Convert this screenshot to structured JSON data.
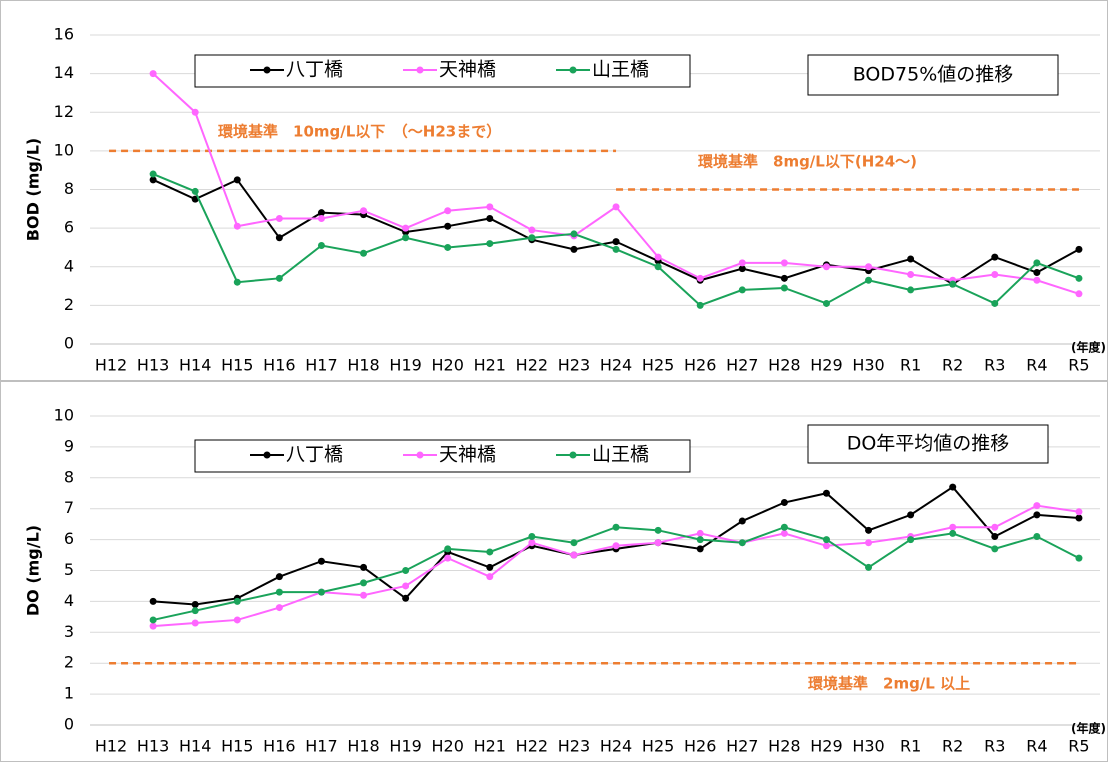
{
  "chart_data": [
    {
      "type": "line",
      "title": "BOD75%値の推移",
      "y_label": "BOD (mg/L)",
      "x_unit": "(年度)",
      "categories": [
        "H12",
        "H13",
        "H14",
        "H15",
        "H16",
        "H17",
        "H18",
        "H19",
        "H20",
        "H21",
        "H22",
        "H23",
        "H24",
        "H25",
        "H26",
        "H27",
        "H28",
        "H29",
        "H30",
        "R1",
        "R2",
        "R3",
        "R4",
        "R5"
      ],
      "ylim": [
        0,
        16
      ],
      "yticks": [
        0,
        2,
        4,
        6,
        8,
        10,
        12,
        14,
        16
      ],
      "grid": true,
      "series": [
        {
          "name": "八丁橋",
          "color": "#000000",
          "values": [
            null,
            8.5,
            7.5,
            8.5,
            5.5,
            6.8,
            6.7,
            5.8,
            6.1,
            6.5,
            5.4,
            4.9,
            5.3,
            4.3,
            3.3,
            3.9,
            3.4,
            4.1,
            3.8,
            4.4,
            3.1,
            4.5,
            3.7,
            4.9
          ]
        },
        {
          "name": "天神橋",
          "color": "#ff66ff",
          "values": [
            null,
            14,
            12,
            6.1,
            6.5,
            6.5,
            6.9,
            6.0,
            6.9,
            7.1,
            5.9,
            5.6,
            7.1,
            4.5,
            3.4,
            4.2,
            4.2,
            4.0,
            4.0,
            3.6,
            3.3,
            3.6,
            3.3,
            2.6
          ]
        },
        {
          "name": "山王橋",
          "color": "#1aa35a",
          "values": [
            null,
            8.8,
            7.9,
            3.2,
            3.4,
            5.1,
            4.7,
            5.5,
            5.0,
            5.2,
            5.5,
            5.7,
            4.9,
            4.0,
            2.0,
            2.8,
            2.9,
            2.1,
            3.3,
            2.8,
            3.1,
            2.1,
            4.2,
            3.4
          ]
        }
      ],
      "reference_lines": [
        {
          "value": 10,
          "from": "H12",
          "to": "H24",
          "label": "環境基準　10mg/L以下　（～H23まで）",
          "color": "#ed7d31"
        },
        {
          "value": 8,
          "from": "H24",
          "to": "R5",
          "label": "環境基準　8mg/L以下(H24～)",
          "color": "#ed7d31"
        }
      ]
    },
    {
      "type": "line",
      "title": "DO年平均値の推移",
      "y_label": "DO (mg/L)",
      "x_unit": "(年度)",
      "categories": [
        "H12",
        "H13",
        "H14",
        "H15",
        "H16",
        "H17",
        "H18",
        "H19",
        "H20",
        "H21",
        "H22",
        "H23",
        "H24",
        "H25",
        "H26",
        "H27",
        "H28",
        "H29",
        "H30",
        "R1",
        "R2",
        "R3",
        "R4",
        "R5"
      ],
      "ylim": [
        0,
        10
      ],
      "yticks": [
        0,
        1,
        2,
        3,
        4,
        5,
        6,
        7,
        8,
        9,
        10
      ],
      "grid": true,
      "series": [
        {
          "name": "八丁橋",
          "color": "#000000",
          "values": [
            null,
            4.0,
            3.9,
            4.1,
            4.8,
            5.3,
            5.1,
            4.1,
            5.6,
            5.1,
            5.8,
            5.5,
            5.7,
            5.9,
            5.7,
            6.6,
            7.2,
            7.5,
            6.3,
            6.8,
            7.7,
            6.1,
            6.8,
            6.7
          ]
        },
        {
          "name": "天神橋",
          "color": "#ff66ff",
          "values": [
            null,
            3.2,
            3.3,
            3.4,
            3.8,
            4.3,
            4.2,
            4.5,
            5.4,
            4.8,
            5.9,
            5.5,
            5.8,
            5.9,
            6.2,
            5.9,
            6.2,
            5.8,
            5.9,
            6.1,
            6.4,
            6.4,
            7.1,
            6.9
          ]
        },
        {
          "name": "山王橋",
          "color": "#1aa35a",
          "values": [
            null,
            3.4,
            3.7,
            4.0,
            4.3,
            4.3,
            4.6,
            5.0,
            5.7,
            5.6,
            6.1,
            5.9,
            6.4,
            6.3,
            6.0,
            5.9,
            6.4,
            6.0,
            5.1,
            6.0,
            6.2,
            5.7,
            6.1,
            5.4
          ]
        }
      ],
      "reference_lines": [
        {
          "value": 2,
          "from": "H12",
          "to": "R5",
          "label": "環境基準　2mg/L 以上",
          "color": "#ed7d31"
        }
      ]
    }
  ]
}
